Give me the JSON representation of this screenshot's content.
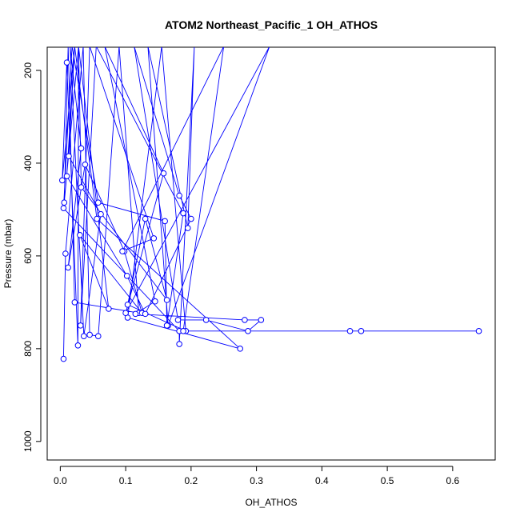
{
  "chart_data": {
    "type": "line",
    "title": "ATOM2 Northeast_Pacific_1 OH_ATHOS",
    "xlabel": "OH_ATHOS",
    "ylabel": "Pressure (mbar)",
    "xlim": [
      -0.02,
      0.665
    ],
    "ylim": [
      1040,
      150
    ],
    "y_reversed": true,
    "x_ticks": [
      0.0,
      0.1,
      0.2,
      0.3,
      0.4,
      0.5,
      0.6
    ],
    "x_tick_labels": [
      "0.0",
      "0.1",
      "0.2",
      "0.3",
      "0.4",
      "0.5",
      "0.6"
    ],
    "y_ticks": [
      200,
      400,
      600,
      800,
      1000
    ],
    "y_tick_labels": [
      "200",
      "400",
      "600",
      "800",
      "1000"
    ],
    "grid": false,
    "series_color": "#0000ff",
    "series": [
      {
        "points": [
          [
            0.005,
            822
          ],
          [
            0.008,
            595
          ],
          [
            0.035,
            148
          ],
          [
            0.045,
            770
          ],
          [
            0.058,
            773
          ],
          [
            0.09,
            148
          ],
          [
            0.12,
            723
          ],
          [
            0.022,
            700
          ],
          [
            0.012,
            148
          ],
          [
            0.006,
            485
          ],
          [
            0.028,
            148
          ],
          [
            0.027,
            793
          ],
          [
            0.01,
            183
          ],
          [
            0.003,
            437
          ],
          [
            0.022,
            148
          ],
          [
            0.013,
            385
          ],
          [
            0.062,
            510
          ],
          [
            0.036,
            773
          ],
          [
            0.015,
            148
          ],
          [
            0.032,
            368
          ],
          [
            0.012,
            625
          ],
          [
            0.038,
            403
          ],
          [
            0.098,
            590
          ],
          [
            0.125,
            723
          ],
          [
            0.03,
            555
          ],
          [
            0.074,
            714
          ],
          [
            0.028,
            148
          ],
          [
            0.032,
            452
          ],
          [
            0.163,
            695
          ],
          [
            0.13,
            520
          ],
          [
            0.103,
            705
          ],
          [
            0.192,
            762
          ],
          [
            0.155,
            148
          ],
          [
            0.103,
            733
          ],
          [
            0.275,
            800
          ],
          [
            0.056,
            520
          ],
          [
            0.022,
            148
          ],
          [
            0.01,
            428
          ],
          [
            0.102,
            643
          ],
          [
            0.13,
            725
          ],
          [
            0.2,
            520
          ],
          [
            0.182,
            470
          ],
          [
            0.113,
            148
          ],
          [
            0.18,
            738
          ],
          [
            0.223,
            738
          ],
          [
            0.287,
            762
          ],
          [
            0.307,
            738
          ],
          [
            0.282,
            738
          ],
          [
            0.115,
            725
          ],
          [
            0.145,
            698
          ],
          [
            0.068,
            148
          ],
          [
            0.158,
            422
          ],
          [
            0.1,
            723
          ],
          [
            0.32,
            148
          ],
          [
            0.165,
            750
          ],
          [
            0.134,
            148
          ],
          [
            0.195,
            540
          ],
          [
            0.205,
            148
          ],
          [
            0.182,
            790
          ],
          [
            0.182,
            762
          ],
          [
            0.005,
            497
          ],
          [
            0.018,
            148
          ],
          [
            0.058,
            485
          ],
          [
            0.16,
            525
          ],
          [
            0.163,
            750
          ],
          [
            0.188,
            508
          ],
          [
            0.055,
            148
          ],
          [
            0.031,
            750
          ],
          [
            0.045,
            148
          ],
          [
            0.143,
            562
          ],
          [
            0.095,
            590
          ],
          [
            0.25,
            148
          ],
          [
            0.188,
            762
          ],
          [
            0.443,
            762
          ],
          [
            0.46,
            762
          ],
          [
            0.64,
            762
          ]
        ]
      }
    ]
  }
}
